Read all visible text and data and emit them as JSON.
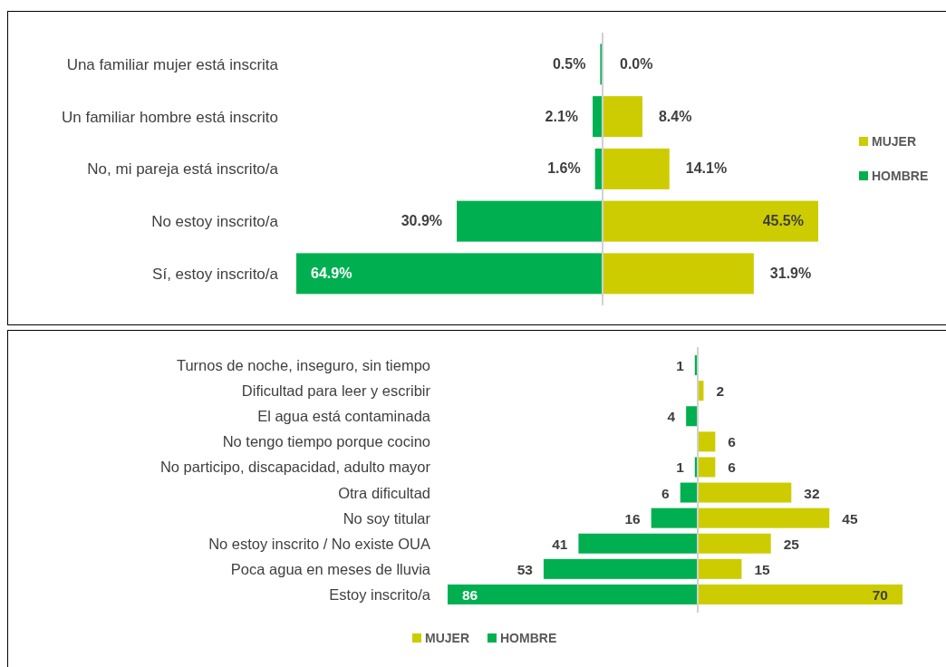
{
  "chart_data": [
    {
      "type": "bar",
      "orientation": "horizontal",
      "categories": [
        "Una familiar mujer está inscrita",
        "Un familiar hombre está inscrito",
        "No, mi pareja está inscrito/a",
        "No estoy inscrito/a",
        "Sí, estoy inscrito/a"
      ],
      "xlim": [
        64.9,
        0
      ],
      "series": [
        {
          "name": "HOMBRE",
          "color": "#00b050",
          "values": [
            0.5,
            2.1,
            1.6,
            30.9,
            64.9
          ],
          "value_labels": [
            "0.5%",
            "2.1%",
            "1.6%",
            "30.9%",
            "64.9%"
          ]
        }
      ],
      "legend": "right"
    },
    {
      "type": "bar",
      "orientation": "horizontal",
      "categories": [
        null,
        null,
        null,
        null,
        null
      ],
      "xlim": [
        0,
        45.5
      ],
      "tick_labels": false,
      "series": [
        {
          "name": "MUJER",
          "color": "#cccc00",
          "values": [
            0.0,
            8.4,
            14.1,
            45.5,
            31.9
          ],
          "value_labels": [
            "0.0%",
            "8.4%",
            "14.1%",
            "45.5%",
            "31.9%"
          ]
        }
      ],
      "legend": "right"
    },
    {
      "type": "bar",
      "orientation": "horizontal",
      "categories": [
        "Turnos de noche, inseguro, sin tiempo",
        "Dificultad para leer y escribir",
        "El agua está contaminada",
        "No tengo tiempo porque cocino",
        "No participo, discapacidad, adulto mayor",
        "Otra dificultad",
        "No soy titular",
        "No estoy inscrito / No existe OUA",
        "Poca agua en meses de lluvia",
        "Estoy inscrito/a"
      ],
      "xlim": [
        86,
        0
      ],
      "series": [
        {
          "name": "HOMBRE",
          "color": "#00b050",
          "values": [
            1,
            null,
            4,
            null,
            1,
            6,
            16,
            41,
            53,
            86
          ],
          "value_labels": [
            "1",
            null,
            "4",
            null,
            "1",
            "6",
            "16",
            "41",
            "53",
            "86"
          ]
        }
      ],
      "legend": "bottom"
    },
    {
      "type": "bar",
      "orientation": "horizontal",
      "categories": [
        null,
        null,
        null,
        null,
        null,
        null,
        null,
        null,
        null,
        null
      ],
      "xlim": [
        0,
        70
      ],
      "tick_labels": false,
      "series": [
        {
          "name": "MUJER",
          "color": "#cccc00",
          "values": [
            null,
            2,
            null,
            6,
            6,
            32,
            45,
            25,
            15,
            70
          ],
          "value_labels": [
            null,
            "2",
            null,
            "6",
            "6",
            "32",
            "45",
            "25",
            "15",
            "70"
          ]
        }
      ],
      "legend": "bottom"
    }
  ]
}
